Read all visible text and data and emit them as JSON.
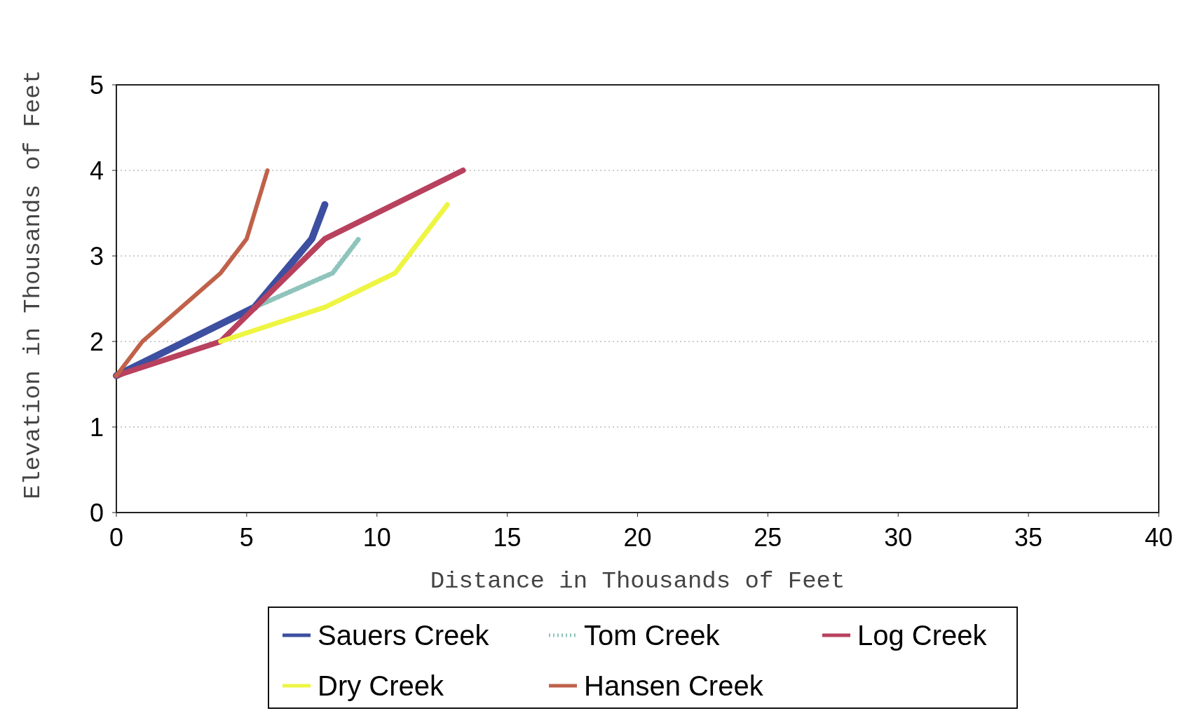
{
  "chart_data": {
    "type": "line",
    "xlabel": "Distance in Thousands of Feet",
    "ylabel": "Elevation in Thousands of Feet",
    "xlim": [
      0,
      40
    ],
    "xticks": [
      0,
      5,
      10,
      15,
      20,
      25,
      30,
      35,
      40
    ],
    "ylim": [
      0,
      5
    ],
    "yticks": [
      0,
      1,
      2,
      3,
      4,
      5
    ],
    "grid": "y",
    "legend": "bottom",
    "marker": "none",
    "series": [
      {
        "name": "Sauers Creek",
        "color": "#3d4fa0",
        "x": [
          0,
          5.3,
          7.5,
          8
        ],
        "values": [
          1.6,
          2.4,
          3.2,
          3.6
        ]
      },
      {
        "name": "Tom Creek",
        "color": "#8fc4bc",
        "line_style": "dotted",
        "x": [
          5.3,
          8.3,
          9.3
        ],
        "values": [
          2.4,
          2.8,
          3.2
        ]
      },
      {
        "name": "Log Creek",
        "color": "#b8415e",
        "x": [
          0,
          4,
          8,
          13.3
        ],
        "values": [
          1.6,
          2,
          3.2,
          4
        ]
      },
      {
        "name": "Dry Creek",
        "color": "#eef542",
        "x": [
          4,
          8,
          10.7,
          12.7
        ],
        "values": [
          2,
          2.4,
          2.8,
          3.6
        ]
      },
      {
        "name": "Hansen Creek",
        "color": "#c0614a",
        "x": [
          0,
          1,
          4,
          5,
          5.8
        ],
        "values": [
          1.6,
          2,
          2.8,
          3.2,
          4
        ]
      }
    ]
  }
}
